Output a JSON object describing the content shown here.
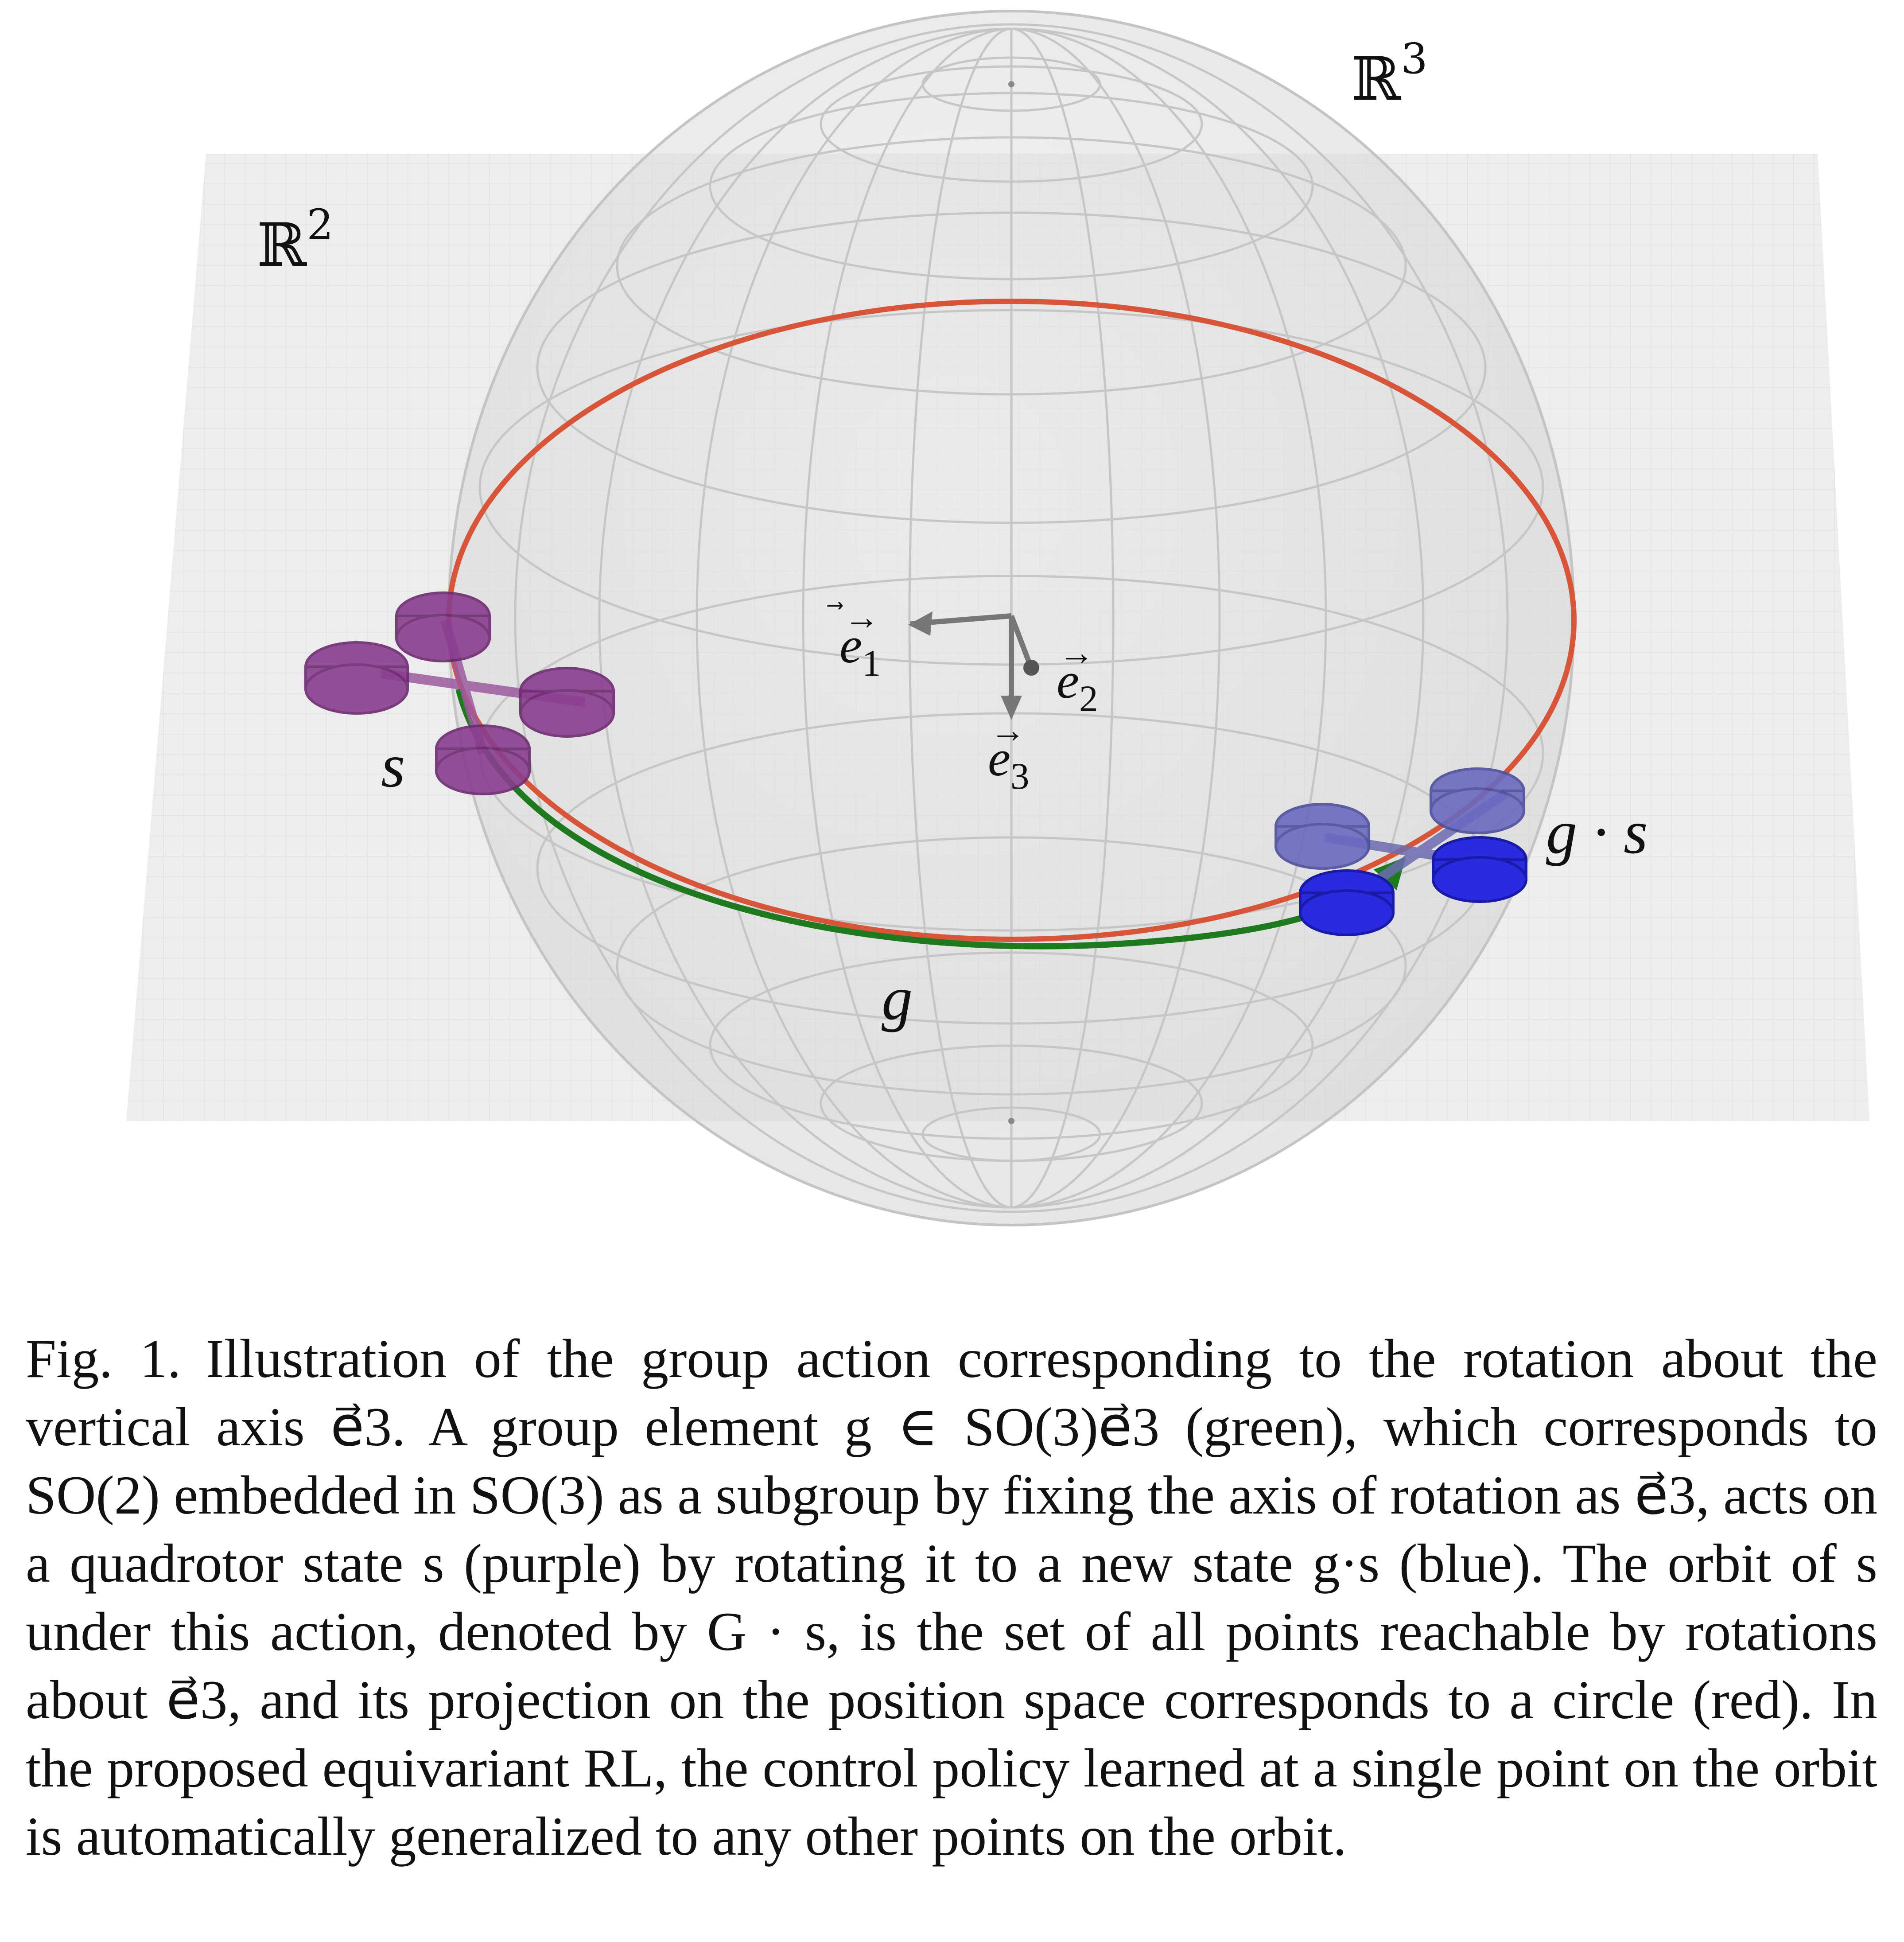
{
  "figure": {
    "plane_label": "ℝ",
    "plane_label_exp": "2",
    "space_label": "ℝ",
    "space_label_exp": "3",
    "axis_e1": "e",
    "axis_e1_sub": "1",
    "axis_e2": "e",
    "axis_e2_sub": "2",
    "axis_e3": "e",
    "axis_e3_sub": "3",
    "state_label": "s",
    "new_state_label": "g · s",
    "group_label": "g",
    "colors": {
      "orbit_circle": "#d9553a",
      "group_arc": "#1f7a1f",
      "state_purple": "#8a3d8f",
      "state_blue": "#2a2ae0",
      "plane": "#ececec",
      "sphere_lines": "#c8c8c8"
    }
  },
  "caption": {
    "fig_num": "Fig. 1.",
    "text": "Illustration of the group action corresponding to the rotation about the vertical axis e⃗3. A group element g ∈ SO(3)e⃗3 (green), which corresponds to SO(2) embedded in SO(3) as a subgroup by fixing the axis of rotation as e⃗3, acts on a quadrotor state s (purple) by rotating it to a new state g·s (blue). The orbit of s under this action, denoted by G · s, is the set of all points reachable by rotations about e⃗3, and its projection on the position space corresponds to a circle (red). In the proposed equivariant RL, the control policy learned at a single point on the orbit is automatically generalized to any other points on the orbit."
  }
}
